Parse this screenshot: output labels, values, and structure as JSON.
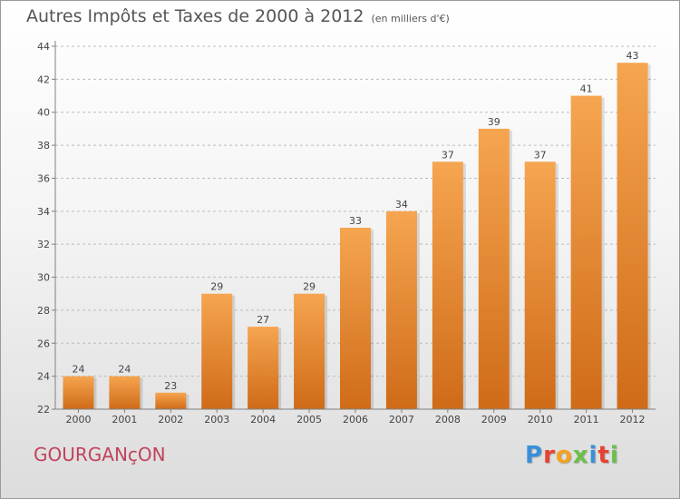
{
  "title": {
    "main": "Autres Impôts et Taxes de 2000 à 2012",
    "unit": "(en milliers d'€)"
  },
  "place_name": "GOURGANçON",
  "brand": {
    "text": "Proxiti",
    "letters": [
      {
        "char": "P",
        "color": "#3a8fd8"
      },
      {
        "char": "r",
        "color": "#e8412f"
      },
      {
        "char": "o",
        "color": "#f2a21e"
      },
      {
        "char": "x",
        "color": "#6cc04a"
      },
      {
        "char": "i",
        "color": "#3a8fd8"
      },
      {
        "char": "t",
        "color": "#e8412f"
      },
      {
        "char": "i",
        "color": "#6cc04a"
      }
    ]
  },
  "colors": {
    "bar_light": "#f6a550",
    "bar_dark": "#cf6b18",
    "axis": "#808080",
    "grid": "#bdbdbd",
    "text": "#444444"
  },
  "chart_data": {
    "type": "bar",
    "title": "Autres Impôts et Taxes de 2000 à 2012",
    "subtitle": "(en milliers d'€)",
    "xlabel": "",
    "ylabel": "",
    "categories": [
      "2000",
      "2001",
      "2002",
      "2003",
      "2004",
      "2005",
      "2006",
      "2007",
      "2008",
      "2009",
      "2010",
      "2011",
      "2012"
    ],
    "values": [
      24,
      24,
      23,
      29,
      27,
      29,
      33,
      34,
      37,
      39,
      37,
      41,
      43
    ],
    "value_labels": [
      "24",
      "24",
      "23",
      "29",
      "27",
      "29",
      "33",
      "34",
      "37",
      "39",
      "37",
      "41",
      "43"
    ],
    "ylim": [
      22,
      44
    ],
    "yticks": [
      "22",
      "24",
      "26",
      "28",
      "30",
      "32",
      "34",
      "36",
      "38",
      "40",
      "42",
      "44"
    ],
    "grid": "horizontal dashed",
    "legend": "none"
  }
}
